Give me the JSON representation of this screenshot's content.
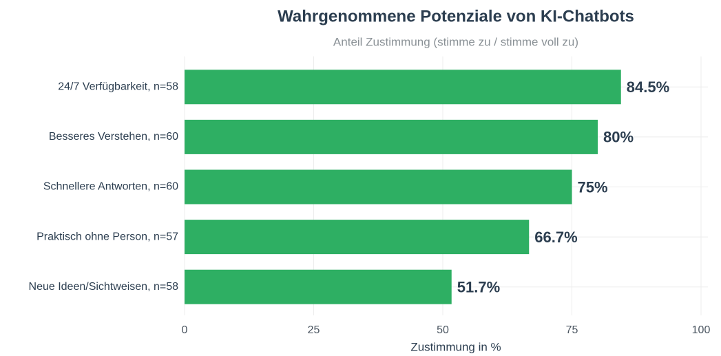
{
  "chart_data": {
    "type": "bar",
    "orientation": "horizontal",
    "title": "Wahrgenommene Potenziale von KI-Chatbots",
    "subtitle": "Anteil Zustimmung (stimme zu / stimme voll zu)",
    "x_label": "Zustimmung in %",
    "categories": [
      "24/7 Verfügbarkeit, n=58",
      "Besseres Verstehen, n=60",
      "Schnellere Antworten, n=60",
      "Praktisch ohne Person, n=57",
      "Neue Ideen/Sichtweisen, n=58"
    ],
    "values": [
      84.5,
      80,
      75,
      66.7,
      51.7
    ],
    "value_labels": [
      "84.5%",
      "80%",
      "75%",
      "66.7%",
      "51.7%"
    ],
    "color": "#2eaf63",
    "xlim": [
      0,
      100
    ],
    "xticks": [
      0,
      25,
      50,
      75,
      100
    ],
    "grid": true
  }
}
